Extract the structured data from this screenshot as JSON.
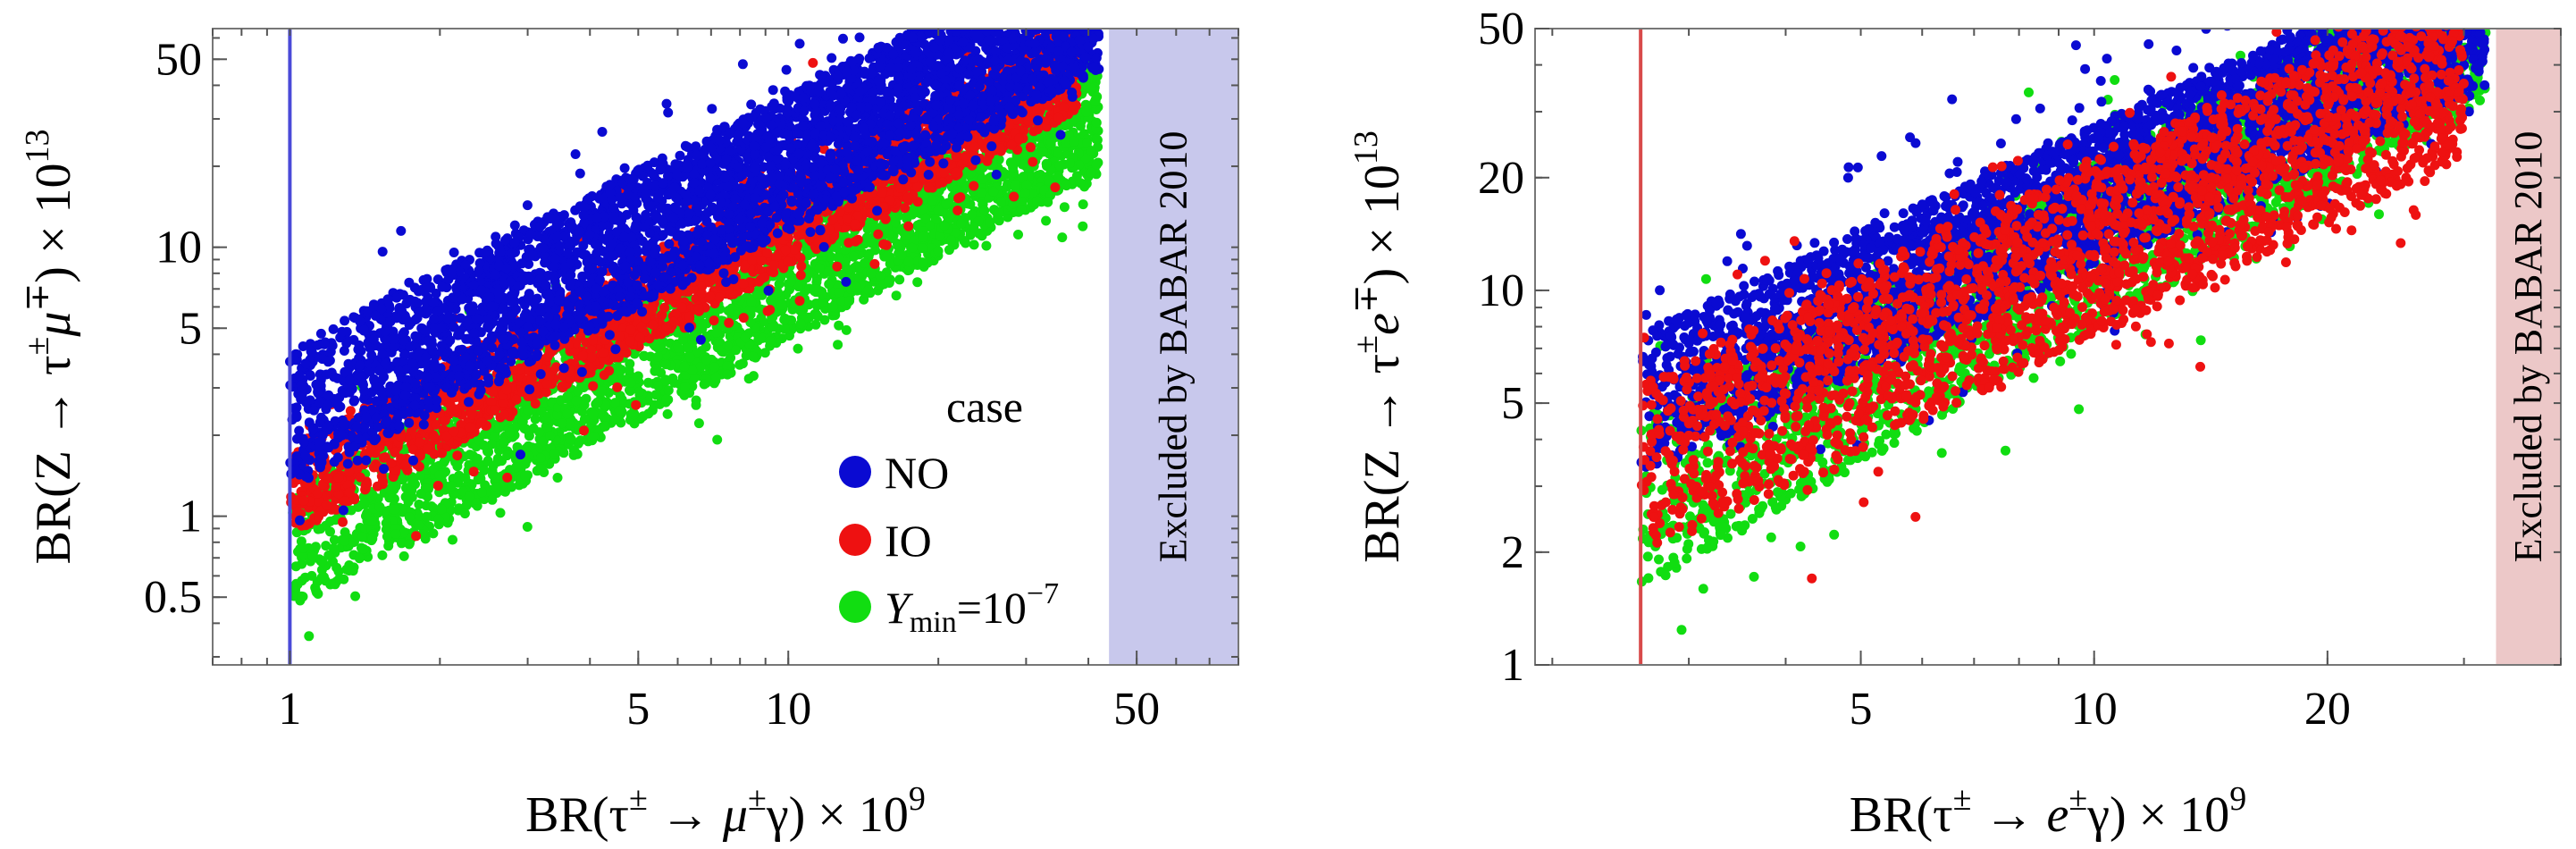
{
  "chart_data": [
    {
      "type": "scatter",
      "xscale": "log",
      "yscale": "log",
      "xlim": [
        0.7,
        80
      ],
      "ylim": [
        0.28,
        65
      ],
      "xticks": [
        {
          "v": 1,
          "label": "1"
        },
        {
          "v": 5,
          "label": "5"
        },
        {
          "v": 10,
          "label": "10"
        },
        {
          "v": 50,
          "label": "50"
        }
      ],
      "yticks": [
        {
          "v": 0.5,
          "label": "0.5"
        },
        {
          "v": 1,
          "label": "1"
        },
        {
          "v": 5,
          "label": "5"
        },
        {
          "v": 10,
          "label": "10"
        },
        {
          "v": 50,
          "label": "50"
        }
      ],
      "xlabel_main": "BR(τ",
      "xlabel_sup1": "±",
      "xlabel_mid": " → μ",
      "xlabel_sup2": "±",
      "xlabel_end": "γ) × 10",
      "xlabel_exp": "9",
      "ylabel_main": "BR(Z → τ",
      "ylabel_sup1": "±",
      "ylabel_mid": "μ",
      "ylabel_sup2": "∓",
      "ylabel_end": ") × 10",
      "ylabel_exp": "13",
      "vline": {
        "x": 1,
        "color": "#4a4ad8"
      },
      "excluded": {
        "x_from": 44,
        "label": "Excluded by BABAR 2010",
        "color": "#c8c8ec"
      },
      "legend": {
        "title": "case",
        "position": "lower-right",
        "items": [
          {
            "label": "NO",
            "color": "#0a0ad2"
          },
          {
            "label": "IO",
            "color": "#ee1111"
          },
          {
            "label_main": "Y",
            "label_sub": "min",
            "label_eq": "=10",
            "label_sup": "−7",
            "color": "#11dd11"
          }
        ]
      },
      "series": [
        {
          "name": "Y_min=10^-7",
          "color": "#11dd11",
          "x_range": [
            1,
            42
          ],
          "band": {
            "slope": 1.0,
            "y_at_x1": [
              0.45,
              1.3
            ]
          },
          "points": 3200,
          "seed": 11
        },
        {
          "name": "IO",
          "color": "#ee1111",
          "x_range": [
            1,
            38
          ],
          "band": {
            "slope": 1.0,
            "y_at_x1": [
              0.85,
              1.8
            ]
          },
          "points": 2600,
          "seed": 23
        },
        {
          "name": "NO",
          "color": "#0a0ad2",
          "x_range": [
            1,
            42
          ],
          "band": {
            "slope": 0.95,
            "y_at_x1": [
              1.3,
              4.2
            ]
          },
          "points": 4200,
          "seed": 37
        }
      ]
    },
    {
      "type": "scatter",
      "xscale": "log",
      "yscale": "log",
      "xlim": [
        1.9,
        40
      ],
      "ylim": [
        1,
        50
      ],
      "xticks": [
        {
          "v": 5,
          "label": "5"
        },
        {
          "v": 10,
          "label": "10"
        },
        {
          "v": 20,
          "label": "20"
        }
      ],
      "yticks": [
        {
          "v": 1,
          "label": "1"
        },
        {
          "v": 2,
          "label": "2"
        },
        {
          "v": 5,
          "label": "5"
        },
        {
          "v": 10,
          "label": "10"
        },
        {
          "v": 20,
          "label": "20"
        },
        {
          "v": 50,
          "label": "50"
        }
      ],
      "xlabel_main": "BR(τ",
      "xlabel_sup1": "±",
      "xlabel_mid": " → e",
      "xlabel_sup2": "±",
      "xlabel_end": "γ) × 10",
      "xlabel_exp": "9",
      "ylabel_main": "BR(Z → τ",
      "ylabel_sup1": "±",
      "ylabel_mid": "e",
      "ylabel_sup2": "∓",
      "ylabel_end": ") × 10",
      "ylabel_exp": "13",
      "vline": {
        "x": 2.6,
        "color": "#d84a4a"
      },
      "excluded": {
        "x_from": 33,
        "label": "Excluded by BABAR 2010",
        "color": "#ecc8c8"
      },
      "series": [
        {
          "name": "Y_min=10^-7",
          "color": "#11dd11",
          "x_range": [
            2.6,
            32
          ],
          "band": {
            "slope": 1.2,
            "y_at_x1": [
              0.5,
              1.4
            ]
          },
          "points": 2600,
          "seed": 51
        },
        {
          "name": "NO",
          "color": "#0a0ad2",
          "x_range": [
            2.6,
            32
          ],
          "band": {
            "slope": 0.95,
            "y_at_x1": [
              1.3,
              3.1
            ]
          },
          "points": 3800,
          "seed": 67
        },
        {
          "name": "IO",
          "color": "#ee1111",
          "x_range": [
            2.6,
            30
          ],
          "band": {
            "slope": 1.0,
            "y_at_x1": [
              0.75,
              2.2
            ]
          },
          "points": 2400,
          "seed": 79
        }
      ]
    }
  ]
}
